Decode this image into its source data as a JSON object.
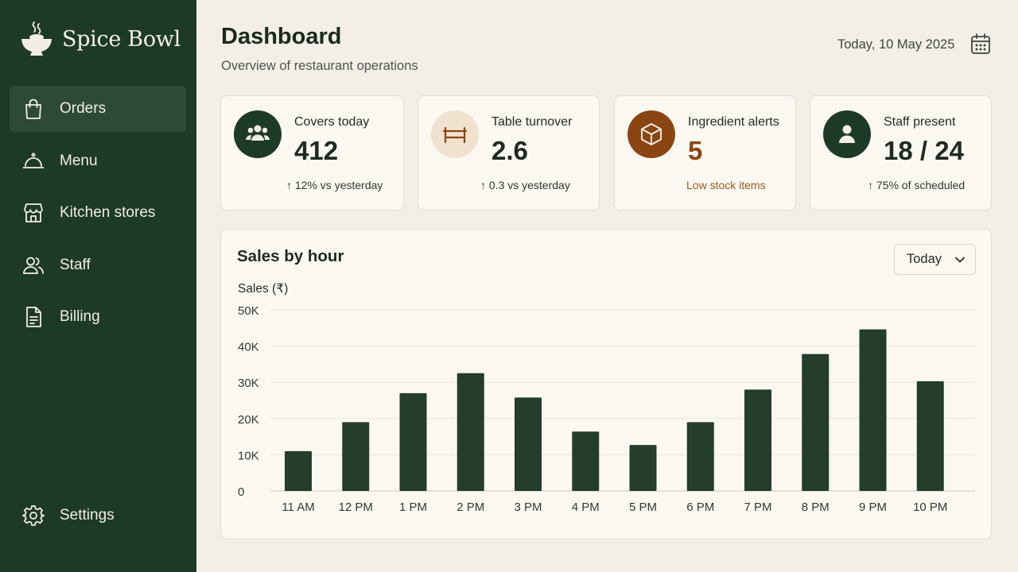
{
  "app": {
    "name": "Spice Bowl"
  },
  "sidebar": {
    "items": [
      {
        "label": "Orders",
        "icon": "shopping-bag-icon",
        "active": true
      },
      {
        "label": "Menu",
        "icon": "cloche-icon"
      },
      {
        "label": "Kitchen stores",
        "icon": "store-icon"
      },
      {
        "label": "Staff",
        "icon": "users-icon"
      },
      {
        "label": "Billing",
        "icon": "document-icon"
      }
    ],
    "settings_label": "Settings"
  },
  "header": {
    "title": "Dashboard",
    "subtitle": "Overview of restaurant operations",
    "date": "Today, 10 May 2025"
  },
  "cards": [
    {
      "label": "Covers today",
      "value": "412",
      "note": "↑ 12% vs yesterday",
      "icon": "users-icon"
    },
    {
      "label": "Table turnover",
      "value": "2.6",
      "note": "↑ 0.3 vs yesterday",
      "icon": "table-icon"
    },
    {
      "label": "Ingredient alerts",
      "value": "5",
      "note": "Low stock items",
      "icon": "box-icon"
    },
    {
      "label": "Staff present",
      "value": "18 / 24",
      "note": "↑ 75% of scheduled",
      "icon": "user-icon"
    }
  ],
  "colors": {
    "sidebar_bg": "#1d3a26",
    "bar": "#243d2d",
    "alert": "#8b4513",
    "alert_text": "#9a5a1e",
    "accent_light": "#f1e2cf"
  },
  "chart_panel": {
    "title": "Sales by hour",
    "period": "Today"
  },
  "chart_data": {
    "type": "bar",
    "ylabel": "Sales (₹)",
    "categories": [
      "11 AM",
      "12 PM",
      "1 PM",
      "2 PM",
      "3 PM",
      "4 PM",
      "5 PM",
      "6 PM",
      "7 PM",
      "8 PM",
      "9 PM",
      "10 PM"
    ],
    "values": [
      11000,
      19000,
      27000,
      32500,
      25800,
      16400,
      12700,
      19000,
      28000,
      37800,
      44600,
      30300
    ],
    "ylim": [
      0,
      50000
    ],
    "yticks": [
      0,
      10000,
      20000,
      30000,
      40000,
      50000
    ],
    "ytick_labels": [
      "0",
      "10K",
      "20K",
      "30K",
      "40K",
      "50K"
    ],
    "grid": true
  }
}
